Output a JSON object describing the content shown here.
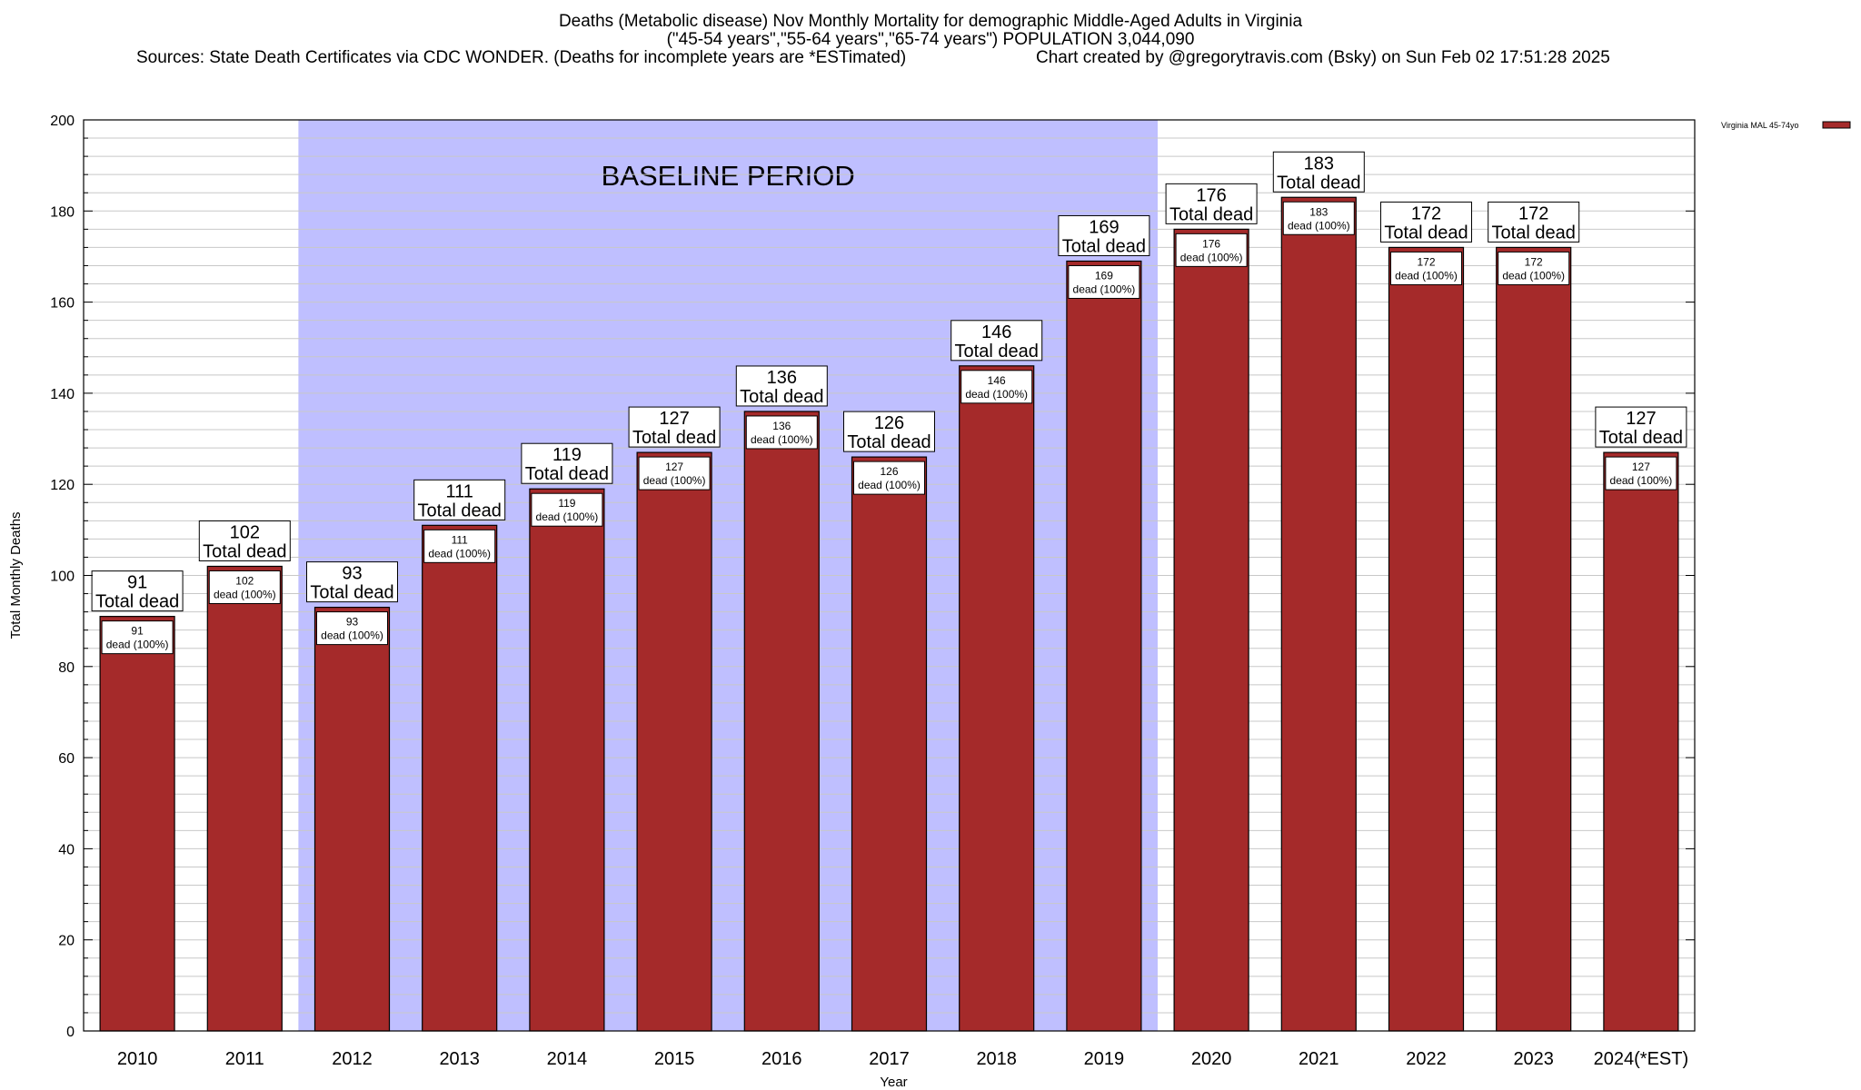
{
  "titles": {
    "line1": "Deaths (Metabolic disease) Nov Monthly Mortality for demographic Middle-Aged Adults in Virginia",
    "line2": "(\"45-54 years\",\"55-64 years\",\"65-74 years\") POPULATION 3,044,090",
    "line3": "Sources: State Death Certificates via CDC WONDER. (Deaths for incomplete years are *ESTimated)",
    "line4": "Chart created by @gregorytravis.com (Bsky) on Sun Feb 02 17:51:28 2025"
  },
  "chart_data": {
    "type": "bar",
    "xlabel": "Year",
    "ylabel": "Total Monthly Deaths",
    "ylim": [
      0,
      200
    ],
    "yticks": [
      0,
      20,
      40,
      60,
      80,
      100,
      120,
      140,
      160,
      180,
      200
    ],
    "categories": [
      "2010",
      "2011",
      "2012",
      "2013",
      "2014",
      "2015",
      "2016",
      "2017",
      "2018",
      "2019",
      "2020",
      "2021",
      "2022",
      "2023",
      "2024(*EST)"
    ],
    "series": [
      {
        "name": "Virginia MAL 45-74yo",
        "color": "#a52a2a",
        "values": [
          91,
          102,
          93,
          111,
          119,
          127,
          136,
          126,
          146,
          169,
          176,
          183,
          172,
          172,
          127
        ]
      }
    ],
    "total_label": "Total dead",
    "inner_label": "dead (100%)",
    "annotation": {
      "text": "BASELINE PERIOD",
      "start_category": "2012",
      "end_category": "2019",
      "color": "#bfbfff"
    },
    "legend_position": "top-right",
    "grid": "horizontal"
  }
}
